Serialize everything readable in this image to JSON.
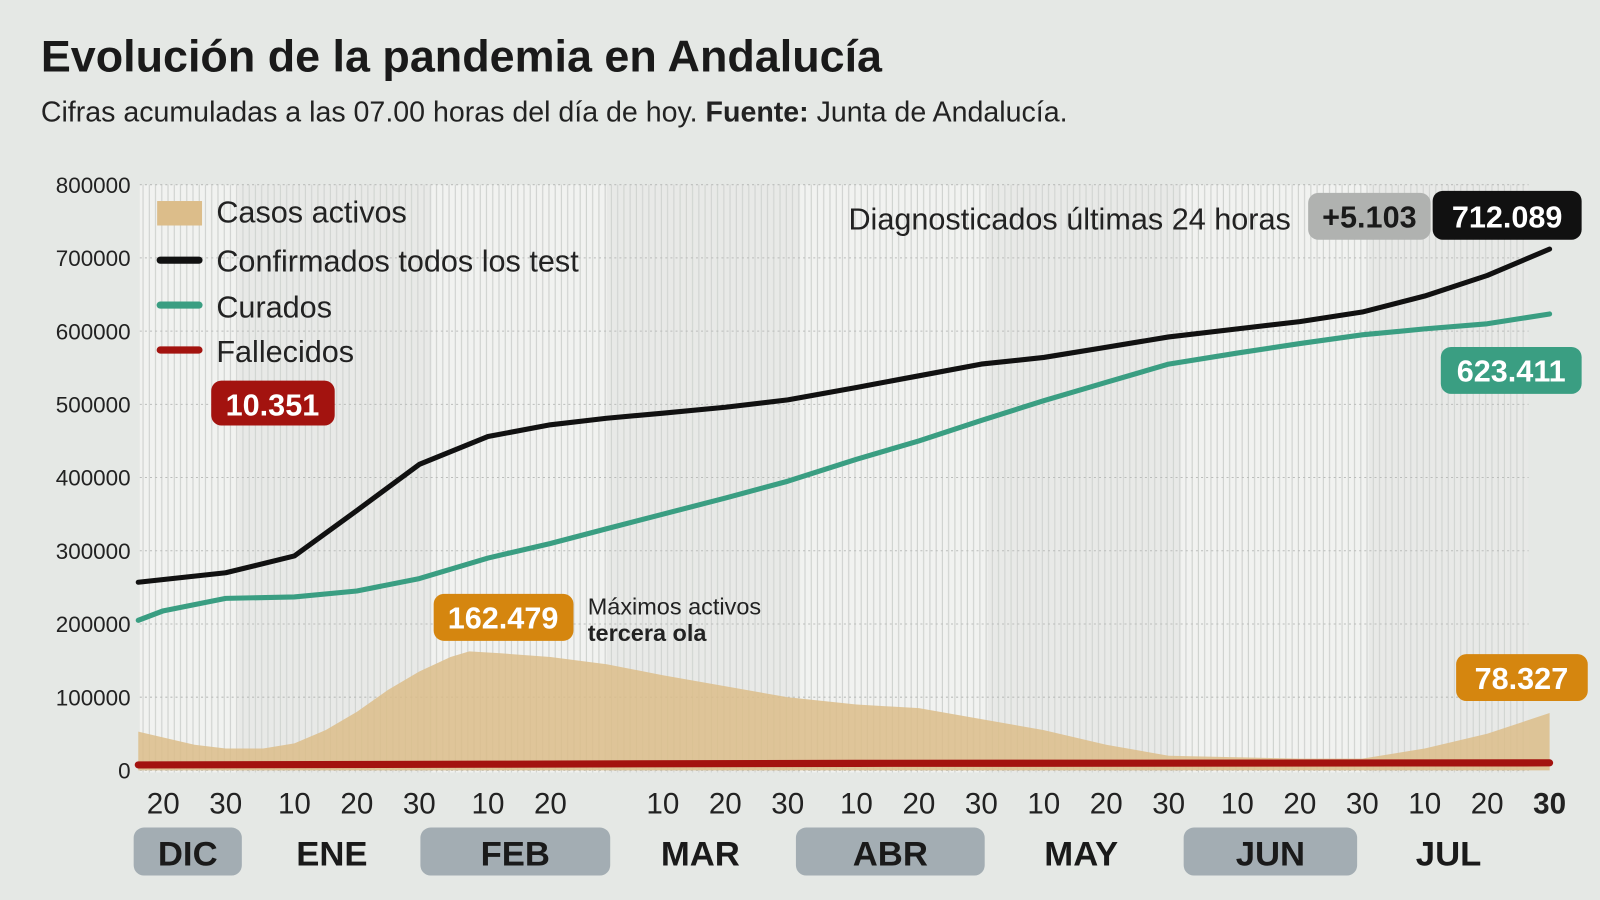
{
  "header": {
    "title": "Evolución de la pandemia en Andalucía",
    "subtitle_pre": "Cifras acumuladas a las 07.00 horas del día de hoy. ",
    "subtitle_bold": "Fuente:",
    "subtitle_post": " Junta de Andalucía."
  },
  "colors": {
    "activos": "#dcbd8a",
    "confirmados": "#111111",
    "curados": "#3a9e82",
    "fallecidos": "#a3130f",
    "activos_badge": "#d5860f",
    "background": "#e5e8e5"
  },
  "chart_data": {
    "type": "line",
    "title": "Evolución de la pandemia en Andalucía",
    "ylim": [
      0,
      800000
    ],
    "yticks": [
      "800000",
      "700000",
      "600000",
      "500000",
      "400000",
      "300000",
      "200000",
      "100000",
      "0"
    ],
    "ytick_values": [
      800000,
      700000,
      600000,
      500000,
      400000,
      300000,
      200000,
      100000,
      0
    ],
    "grid": "horizontal dotted",
    "legend_placement": "top-left",
    "xticks": [
      {
        "date": "2020-12-20",
        "label": "20"
      },
      {
        "date": "2020-12-30",
        "label": "30"
      },
      {
        "date": "2021-01-10",
        "label": "10"
      },
      {
        "date": "2021-01-20",
        "label": "20"
      },
      {
        "date": "2021-01-30",
        "label": "30"
      },
      {
        "date": "2021-02-10",
        "label": "10"
      },
      {
        "date": "2021-02-20",
        "label": "20"
      },
      {
        "date": "2021-03-10",
        "label": "10"
      },
      {
        "date": "2021-03-20",
        "label": "20"
      },
      {
        "date": "2021-03-30",
        "label": "30"
      },
      {
        "date": "2021-04-10",
        "label": "10"
      },
      {
        "date": "2021-04-20",
        "label": "20"
      },
      {
        "date": "2021-04-30",
        "label": "30"
      },
      {
        "date": "2021-05-10",
        "label": "10"
      },
      {
        "date": "2021-05-20",
        "label": "20"
      },
      {
        "date": "2021-05-30",
        "label": "30"
      },
      {
        "date": "2021-06-10",
        "label": "10"
      },
      {
        "date": "2021-06-20",
        "label": "20"
      },
      {
        "date": "2021-06-30",
        "label": "30"
      },
      {
        "date": "2021-07-10",
        "label": "10"
      },
      {
        "date": "2021-07-20",
        "label": "20"
      },
      {
        "date": "2021-07-30",
        "label": "30"
      }
    ],
    "months": [
      {
        "label": "DIC",
        "start": "2020-12-16",
        "end": "2020-12-31",
        "highlight": true
      },
      {
        "label": "ENE",
        "start": "2021-01-01",
        "end": "2021-01-31",
        "highlight": false
      },
      {
        "label": "FEB",
        "start": "2021-02-01",
        "end": "2021-02-28",
        "highlight": true
      },
      {
        "label": "MAR",
        "start": "2021-03-01",
        "end": "2021-03-31",
        "highlight": false
      },
      {
        "label": "ABR",
        "start": "2021-04-01",
        "end": "2021-04-30",
        "highlight": true
      },
      {
        "label": "MAY",
        "start": "2021-05-01",
        "end": "2021-05-31",
        "highlight": false
      },
      {
        "label": "JUN",
        "start": "2021-06-01",
        "end": "2021-06-30",
        "highlight": true
      },
      {
        "label": "JUL",
        "start": "2021-07-01",
        "end": "2021-07-30",
        "highlight": false
      }
    ],
    "series": [
      {
        "name": "Casos activos",
        "kind": "area",
        "points": [
          [
            "2020-12-16",
            53000
          ],
          [
            "2020-12-20",
            45000
          ],
          [
            "2020-12-25",
            35000
          ],
          [
            "2020-12-30",
            30000
          ],
          [
            "2021-01-05",
            30000
          ],
          [
            "2021-01-10",
            37000
          ],
          [
            "2021-01-15",
            55000
          ],
          [
            "2021-01-20",
            80000
          ],
          [
            "2021-01-25",
            110000
          ],
          [
            "2021-01-30",
            135000
          ],
          [
            "2021-02-04",
            155000
          ],
          [
            "2021-02-07",
            162479
          ],
          [
            "2021-02-12",
            160000
          ],
          [
            "2021-02-20",
            155000
          ],
          [
            "2021-03-01",
            145000
          ],
          [
            "2021-03-10",
            130000
          ],
          [
            "2021-03-20",
            115000
          ],
          [
            "2021-03-30",
            100000
          ],
          [
            "2021-04-10",
            90000
          ],
          [
            "2021-04-20",
            85000
          ],
          [
            "2021-04-30",
            70000
          ],
          [
            "2021-05-10",
            55000
          ],
          [
            "2021-05-20",
            35000
          ],
          [
            "2021-05-30",
            20000
          ],
          [
            "2021-06-10",
            18000
          ],
          [
            "2021-06-20",
            16000
          ],
          [
            "2021-06-30",
            16000
          ],
          [
            "2021-07-10",
            30000
          ],
          [
            "2021-07-20",
            50000
          ],
          [
            "2021-07-30",
            78327
          ]
        ]
      },
      {
        "name": "Confirmados todos los test",
        "kind": "line",
        "points": [
          [
            "2020-12-16",
            257000
          ],
          [
            "2020-12-30",
            270000
          ],
          [
            "2021-01-10",
            293000
          ],
          [
            "2021-01-20",
            355000
          ],
          [
            "2021-01-30",
            418000
          ],
          [
            "2021-02-10",
            456000
          ],
          [
            "2021-02-20",
            472000
          ],
          [
            "2021-03-01",
            481000
          ],
          [
            "2021-03-10",
            488000
          ],
          [
            "2021-03-20",
            496000
          ],
          [
            "2021-03-30",
            506000
          ],
          [
            "2021-04-10",
            523000
          ],
          [
            "2021-04-20",
            539000
          ],
          [
            "2021-04-30",
            555000
          ],
          [
            "2021-05-10",
            564000
          ],
          [
            "2021-05-20",
            578000
          ],
          [
            "2021-05-30",
            592000
          ],
          [
            "2021-06-10",
            603000
          ],
          [
            "2021-06-20",
            613000
          ],
          [
            "2021-06-30",
            626000
          ],
          [
            "2021-07-10",
            648000
          ],
          [
            "2021-07-20",
            676000
          ],
          [
            "2021-07-30",
            712089
          ]
        ]
      },
      {
        "name": "Curados",
        "kind": "line",
        "points": [
          [
            "2020-12-16",
            205000
          ],
          [
            "2020-12-20",
            218000
          ],
          [
            "2020-12-30",
            235000
          ],
          [
            "2021-01-10",
            237000
          ],
          [
            "2021-01-20",
            245000
          ],
          [
            "2021-01-30",
            262000
          ],
          [
            "2021-02-10",
            290000
          ],
          [
            "2021-02-20",
            310000
          ],
          [
            "2021-03-01",
            330000
          ],
          [
            "2021-03-10",
            350000
          ],
          [
            "2021-03-20",
            372000
          ],
          [
            "2021-03-30",
            395000
          ],
          [
            "2021-04-10",
            425000
          ],
          [
            "2021-04-20",
            450000
          ],
          [
            "2021-04-30",
            478000
          ],
          [
            "2021-05-10",
            505000
          ],
          [
            "2021-05-20",
            530000
          ],
          [
            "2021-05-30",
            555000
          ],
          [
            "2021-06-10",
            570000
          ],
          [
            "2021-06-20",
            583000
          ],
          [
            "2021-06-30",
            595000
          ],
          [
            "2021-07-10",
            603000
          ],
          [
            "2021-07-20",
            610000
          ],
          [
            "2021-07-30",
            623411
          ]
        ]
      },
      {
        "name": "Fallecidos",
        "kind": "line",
        "points": [
          [
            "2020-12-16",
            7500
          ],
          [
            "2021-02-10",
            8500
          ],
          [
            "2021-04-10",
            9600
          ],
          [
            "2021-07-30",
            10351
          ]
        ]
      }
    ],
    "annotations": {
      "diagnosticados_label": "Diagnosticados últimas 24 horas",
      "diagnosticados_delta": "+5.103",
      "confirmados_total": "712.089",
      "curados_total": "623.411",
      "fallecidos_total": "10.351",
      "activos_max": "162.479",
      "activos_max_note_1": "Máximos activos",
      "activos_max_note_2": "tercera ola",
      "activos_actual": "78.327"
    }
  }
}
